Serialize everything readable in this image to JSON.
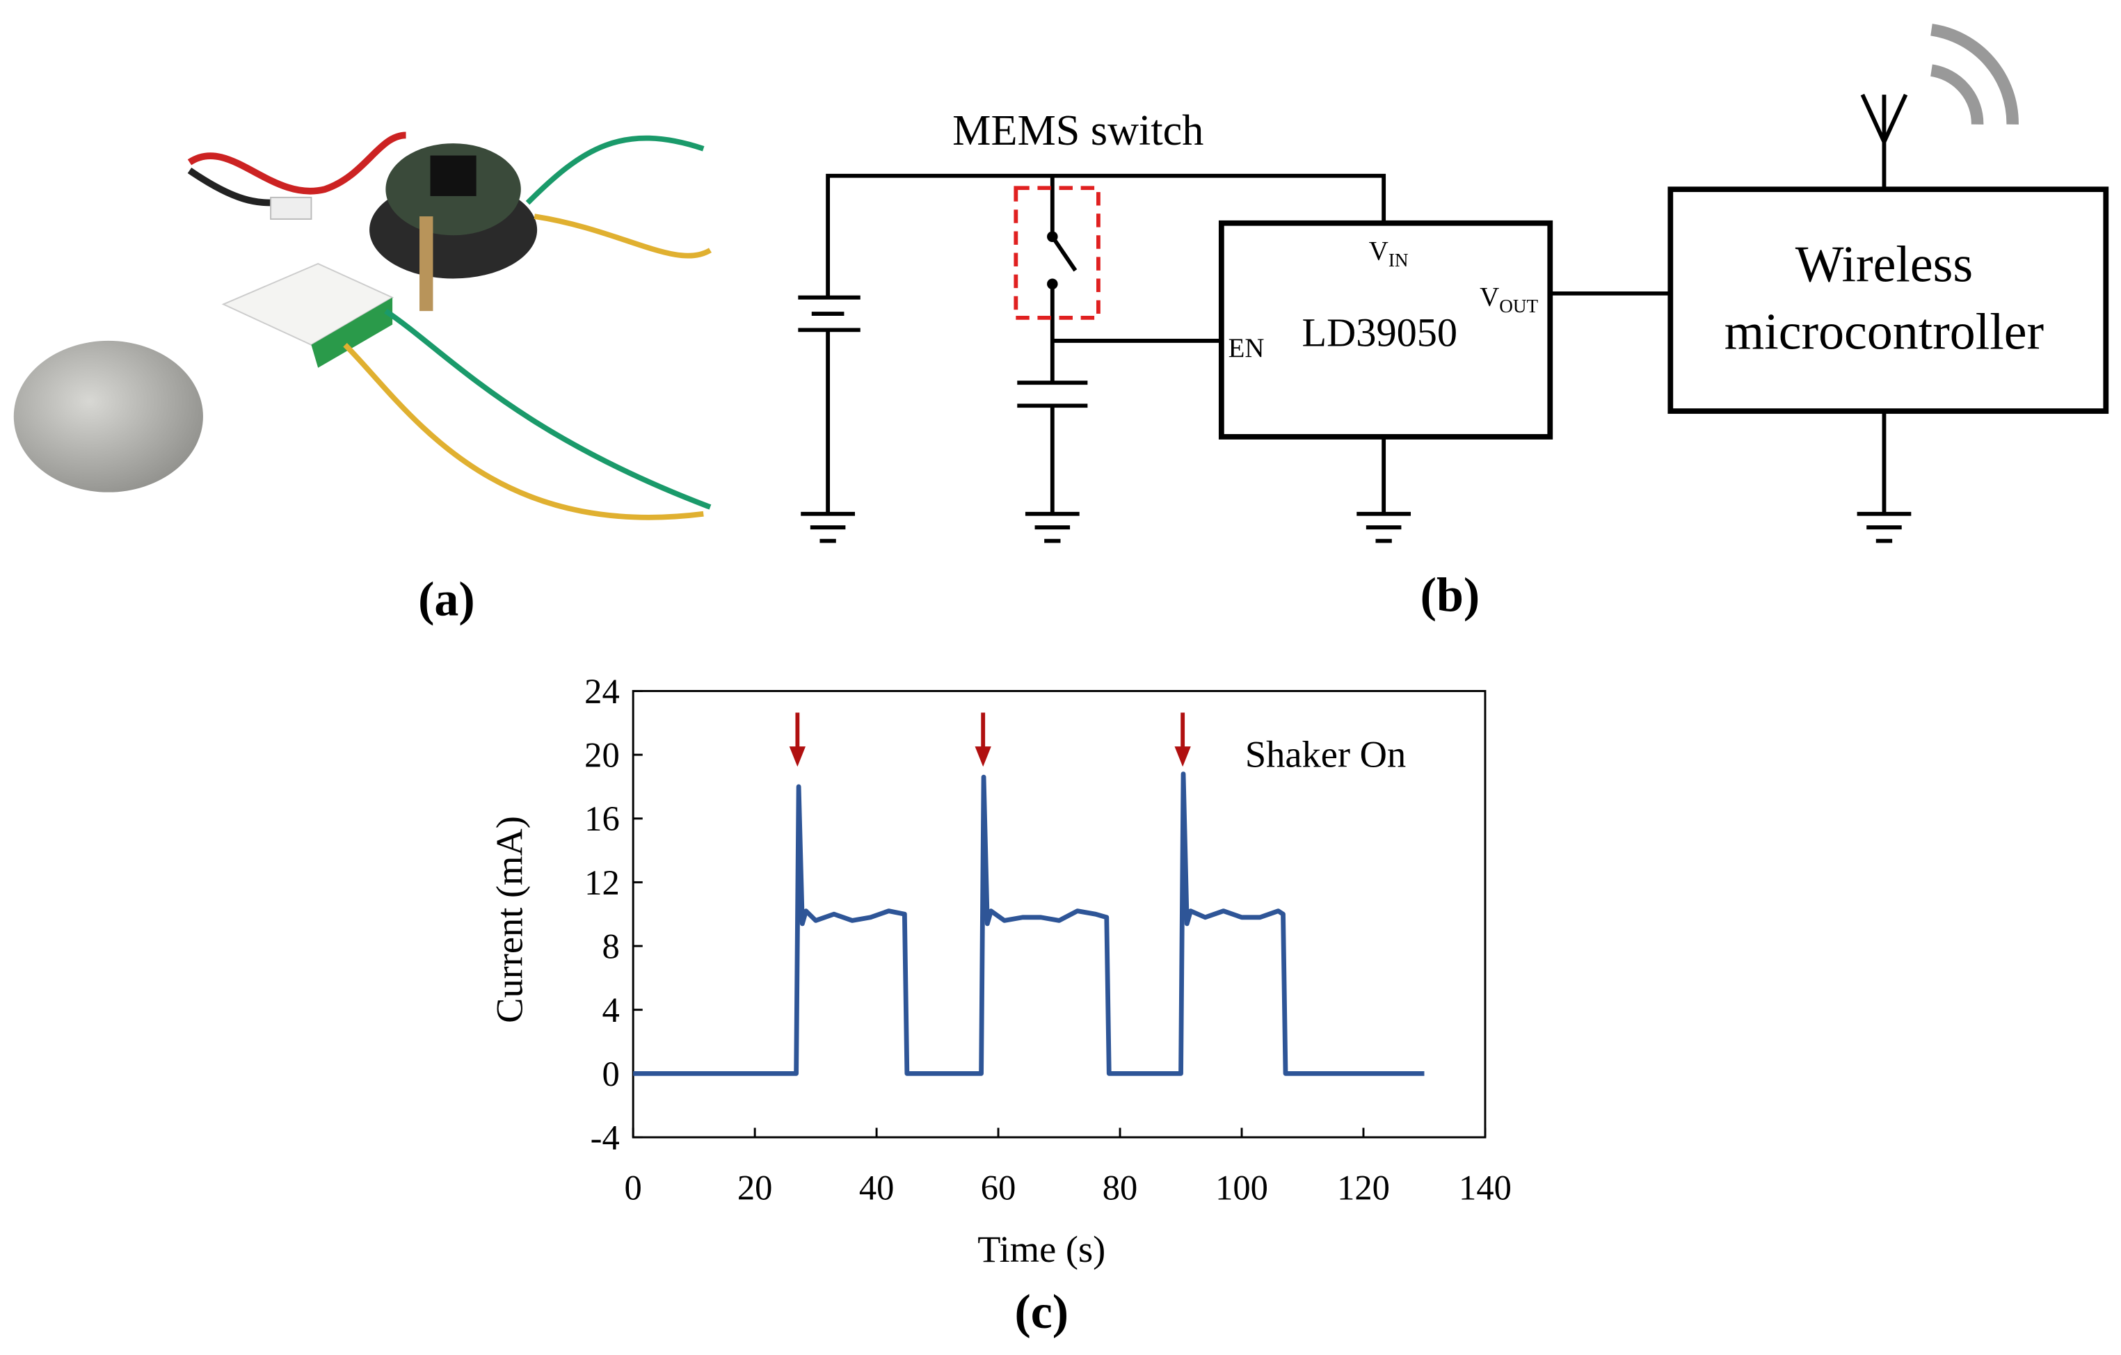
{
  "panels": {
    "a": "(a)",
    "b": "(b)",
    "c": "(c)"
  },
  "diagram": {
    "switch_label": "MEMS switch",
    "regulator": "LD39050",
    "en": "EN",
    "vin": [
      "V",
      "IN"
    ],
    "vout": [
      "V",
      "OUT"
    ],
    "mcu": [
      "Wireless",
      "microcontroller"
    ]
  },
  "chart_data": {
    "type": "line",
    "x_label": "Time (s)",
    "y_label": "Current (mA)",
    "annotation": "Shaker On",
    "annotation_x": [
      27,
      57.5,
      90.3
    ],
    "color": "#2e5597",
    "x": [
      0,
      26.8,
      27.2,
      27.8,
      28.4,
      30,
      33,
      36,
      39,
      42,
      44.6,
      45,
      57.2,
      57.6,
      58.2,
      58.8,
      61,
      64,
      67,
      70,
      73,
      76,
      77.8,
      78.2,
      90,
      90.4,
      91,
      91.6,
      94,
      97,
      100,
      103,
      106,
      106.8,
      107.2,
      130
    ],
    "values": [
      0,
      0,
      18,
      9.4,
      10.2,
      9.6,
      10,
      9.6,
      9.8,
      10.2,
      10,
      0,
      0,
      18.6,
      9.4,
      10.2,
      9.6,
      9.8,
      9.8,
      9.6,
      10.2,
      10,
      9.8,
      0,
      0,
      18.8,
      9.4,
      10.2,
      9.8,
      10.2,
      9.8,
      9.8,
      10.2,
      10,
      0,
      0
    ],
    "xlim": [
      0,
      140
    ],
    "ylim": [
      -4,
      24
    ],
    "xticks": [
      0,
      20,
      40,
      60,
      80,
      100,
      120,
      140
    ],
    "yticks": [
      -4,
      0,
      4,
      8,
      12,
      16,
      20,
      24
    ],
    "grid": false
  }
}
